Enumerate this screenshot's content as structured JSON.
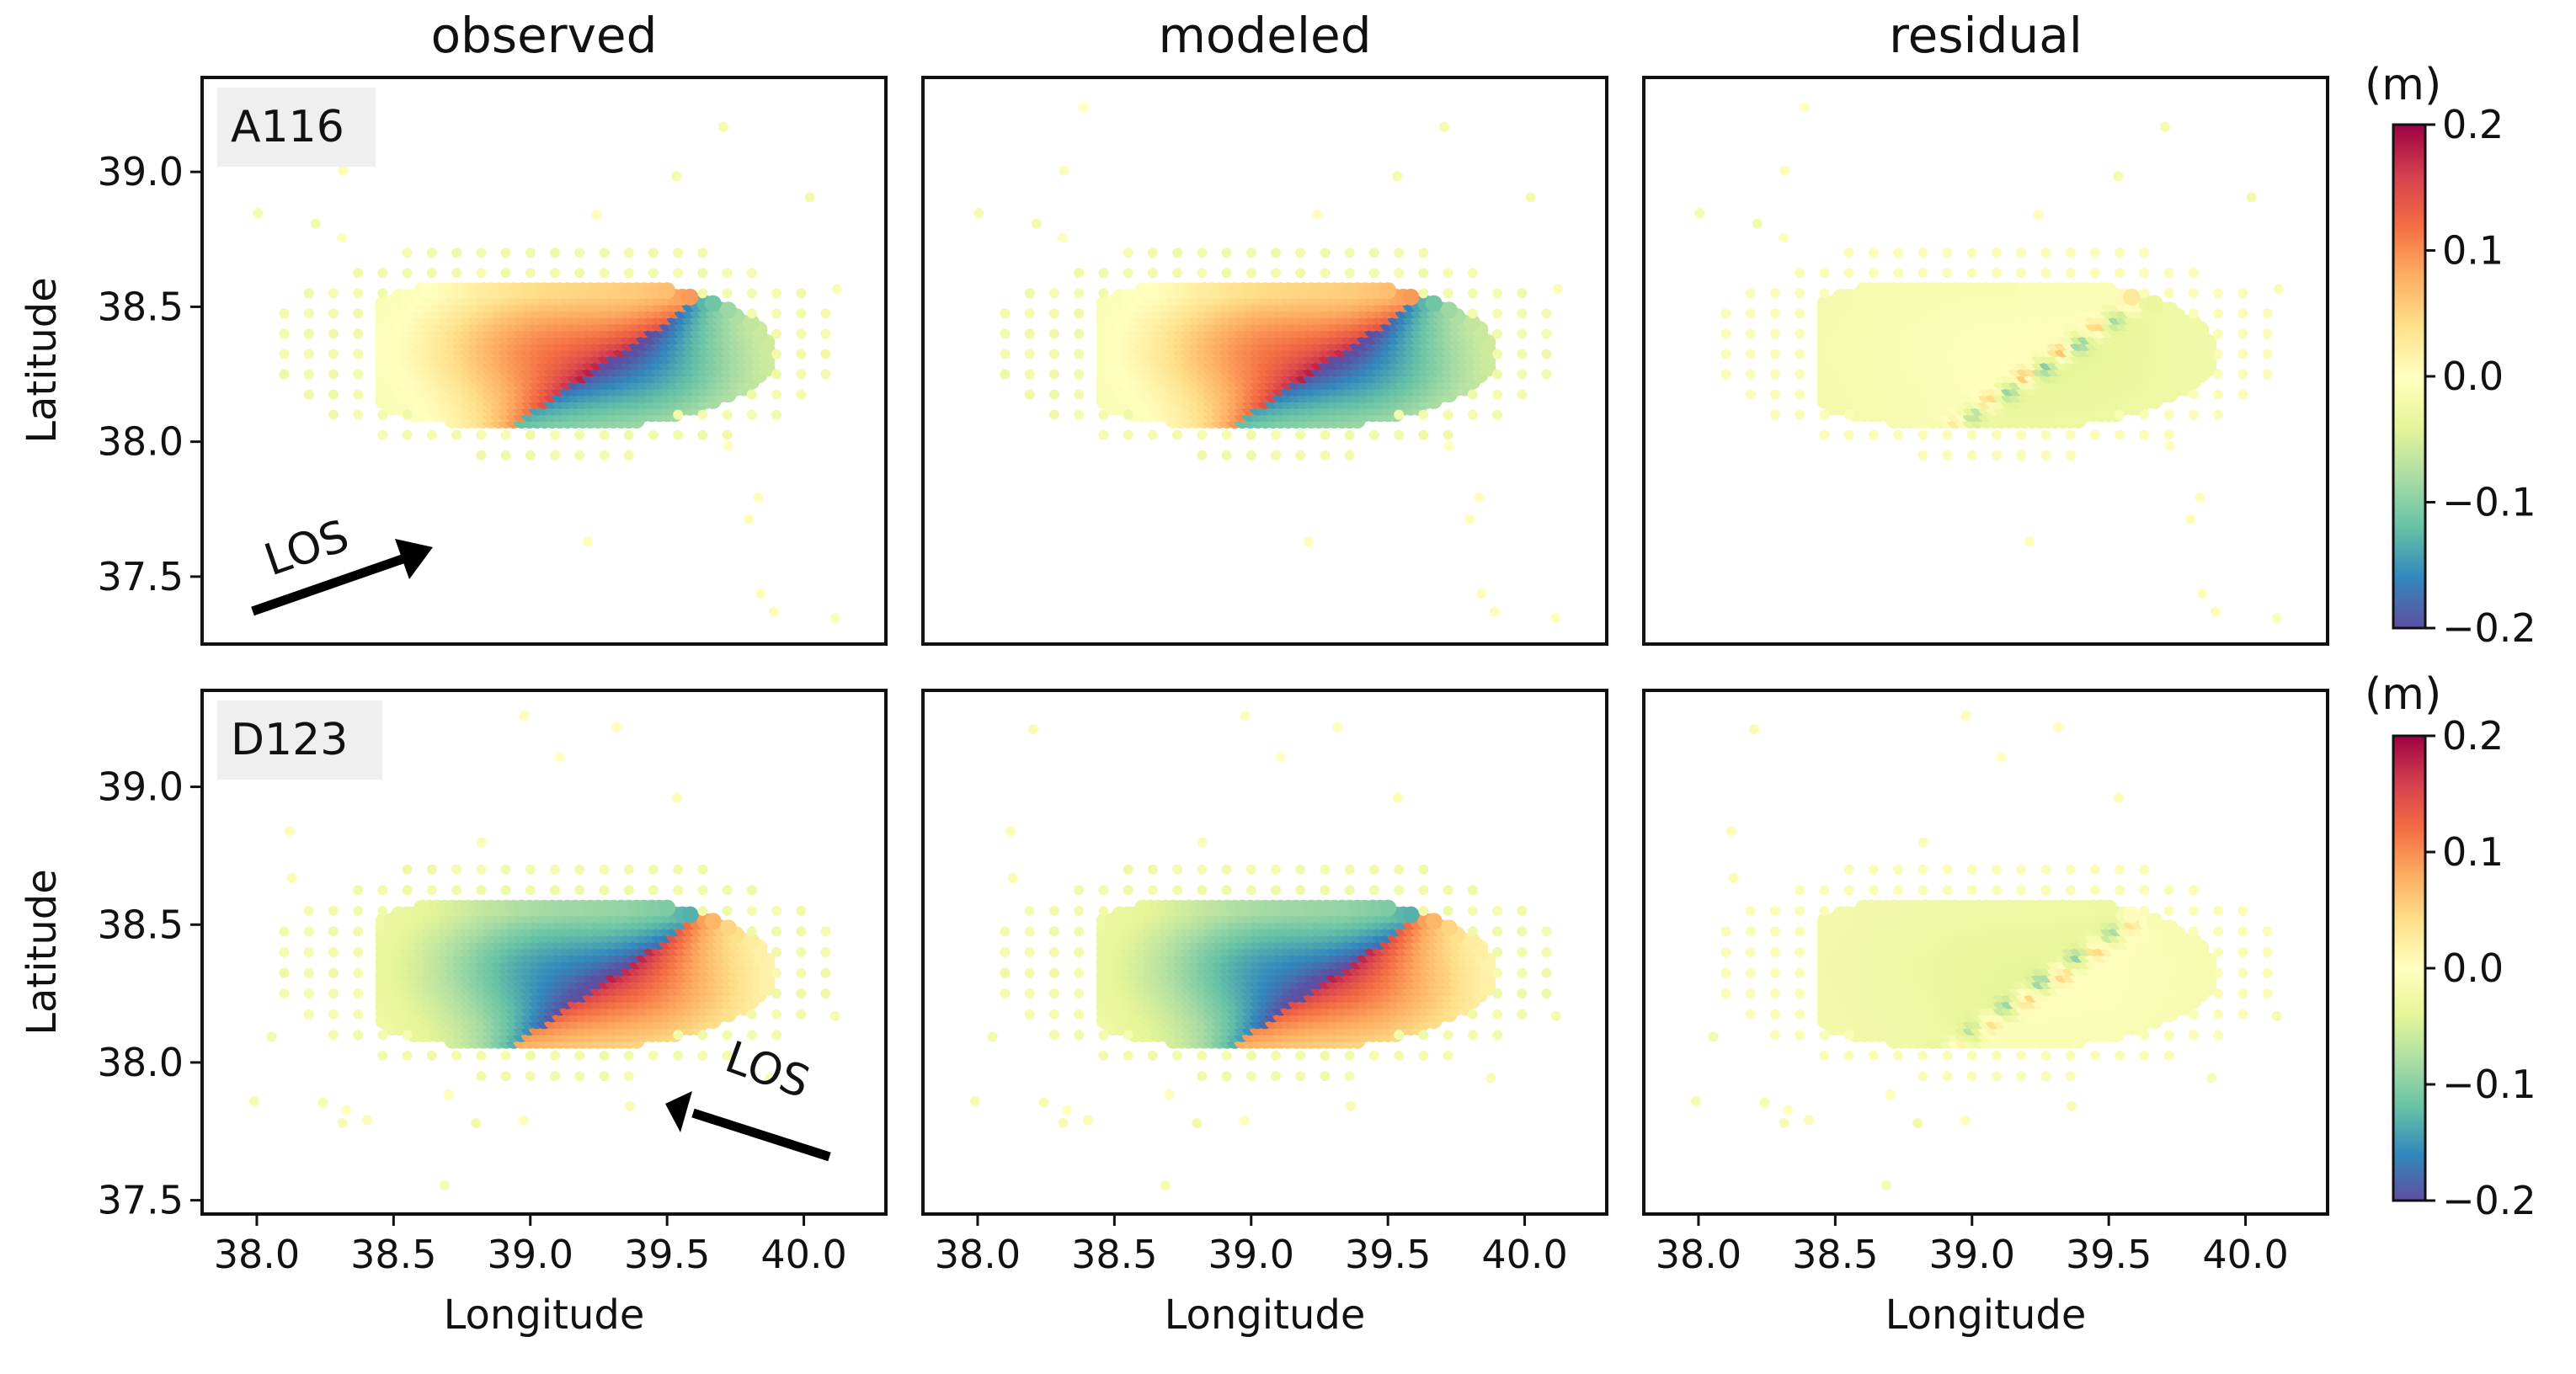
{
  "figure": {
    "column_titles": [
      "observed",
      "modeled",
      "residual"
    ],
    "colorbar": {
      "unit": "(m)",
      "ticks": [
        0.2,
        0.1,
        0.0,
        -0.1,
        -0.2
      ],
      "tick_labels": [
        "0.2",
        "0.1",
        "0.0",
        "−0.1",
        "−0.2"
      ],
      "range": [
        -0.2,
        0.2
      ],
      "colormap": [
        "#5e4fa2",
        "#3288bd",
        "#66c2a5",
        "#abdda4",
        "#e6f598",
        "#ffffbf",
        "#fee08b",
        "#fdae61",
        "#f46d43",
        "#d53e4f",
        "#9e0142"
      ]
    }
  },
  "chart_data": [
    {
      "type": "scatter",
      "row": 0,
      "track": "A116",
      "los_label": "LOS",
      "los_direction": "ascending (arrow toward upper-right)",
      "ylabel": "Latitude",
      "xlabel": "",
      "xlim": [
        37.8,
        40.3
      ],
      "ylim": [
        37.25,
        39.35
      ],
      "xticks": [
        38.0,
        38.5,
        39.0,
        39.5,
        40.0
      ],
      "yticks": [
        39.0,
        38.5,
        38.0,
        37.5
      ],
      "ytick_labels": [
        "39.0",
        "38.5",
        "38.0",
        "37.5"
      ],
      "panels": [
        {
          "name": "observed",
          "title": "observed",
          "fault_sign": 1,
          "residual": false
        },
        {
          "name": "modeled",
          "title": "modeled",
          "fault_sign": 1,
          "residual": false
        },
        {
          "name": "residual",
          "title": "residual",
          "fault_sign": 1,
          "residual": true
        }
      ]
    },
    {
      "type": "scatter",
      "row": 1,
      "track": "D123",
      "los_label": "LOS",
      "los_direction": "descending (arrow toward upper-left)",
      "ylabel": "Latitude",
      "xlabel": "Longitude",
      "xlim": [
        37.8,
        40.3
      ],
      "ylim": [
        37.45,
        39.35
      ],
      "xticks": [
        38.0,
        38.5,
        39.0,
        39.5,
        40.0
      ],
      "xtick_labels": [
        "38.0",
        "38.5",
        "39.0",
        "39.5",
        "40.0"
      ],
      "yticks": [
        39.0,
        38.5,
        38.0,
        37.5
      ],
      "ytick_labels": [
        "39.0",
        "38.5",
        "38.0",
        "37.5"
      ],
      "panels": [
        {
          "name": "observed",
          "title": "observed",
          "fault_sign": -1,
          "residual": false
        },
        {
          "name": "modeled",
          "title": "modeled",
          "fault_sign": -1,
          "residual": false
        },
        {
          "name": "residual",
          "title": "residual",
          "fault_sign": -1,
          "residual": true
        }
      ]
    }
  ]
}
